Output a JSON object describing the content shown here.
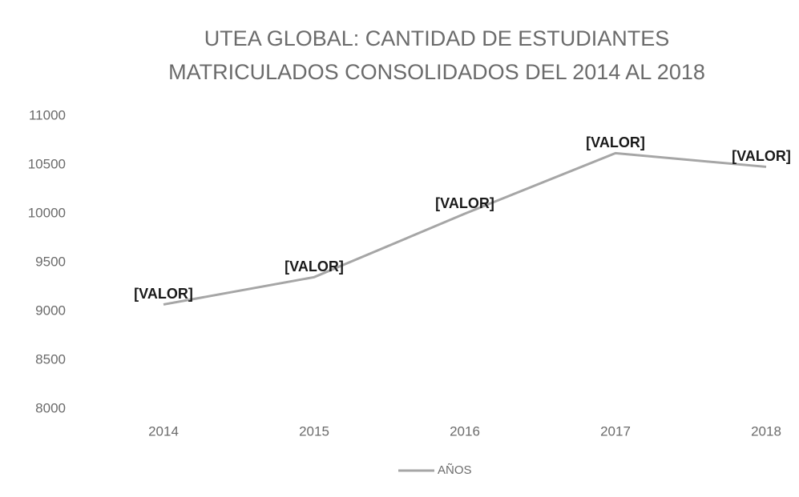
{
  "chart_data": {
    "type": "line",
    "title": [
      "UTEA GLOBAL: CANTIDAD DE ESTUDIANTES",
      "MATRICULADOS CONSOLIDADOS  DEL 2014 AL 2018"
    ],
    "categories": [
      "2014",
      "2015",
      "2016",
      "2017",
      "2018"
    ],
    "series": [
      {
        "name": "AÑOS",
        "color": "#a6a6a6",
        "values": [
          9070,
          9350,
          10000,
          10620,
          10480
        ],
        "value_labels": [
          "[VALOR]",
          "[VALOR]",
          "[VALOR]",
          "[VALOR]",
          "[VALOR]"
        ]
      }
    ],
    "ylim": [
      8000,
      11000
    ],
    "yticks": [
      8000,
      8500,
      9000,
      9500,
      10000,
      10500,
      11000
    ],
    "grid": false,
    "legend": "bottom"
  }
}
